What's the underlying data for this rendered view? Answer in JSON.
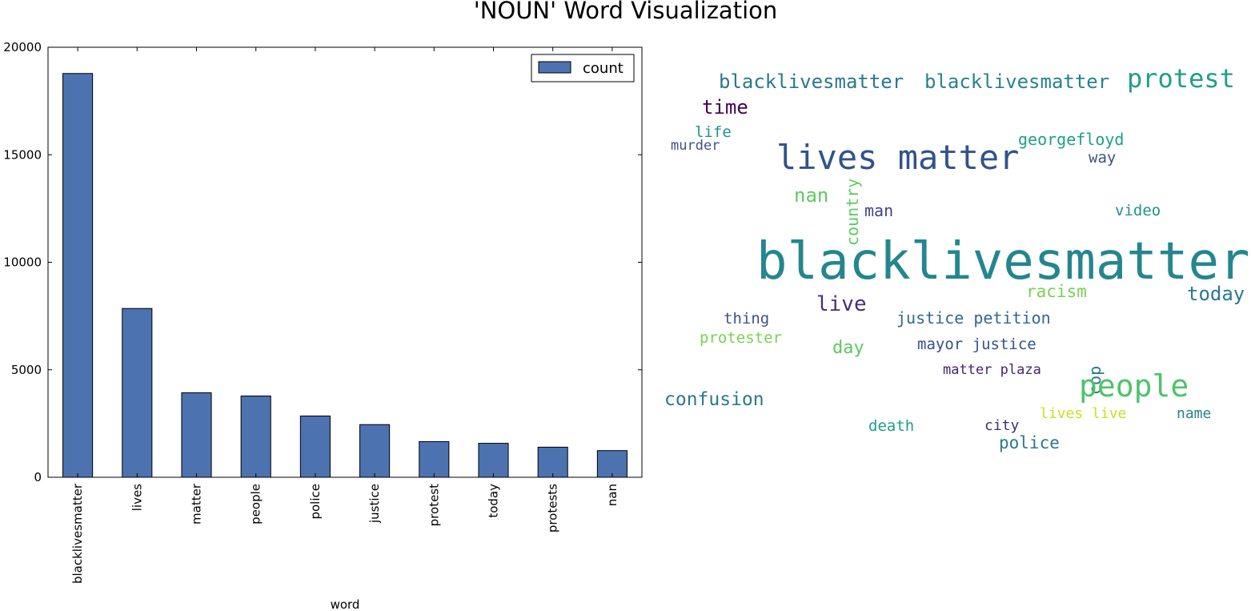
{
  "page_title": "'NOUN' Word Visualization",
  "chart_data": {
    "type": "bar",
    "title": "'NOUN' Word Visualization",
    "xlabel": "word",
    "ylabel": "",
    "categories": [
      "blacklivesmatter",
      "lives",
      "matter",
      "people",
      "police",
      "justice",
      "protest",
      "today",
      "protests",
      "nan"
    ],
    "series": [
      {
        "name": "count",
        "values": [
          18780,
          7850,
          3930,
          3780,
          2850,
          2450,
          1660,
          1580,
          1400,
          1240
        ]
      }
    ],
    "ylim": [
      0,
      20000
    ],
    "yticks": [
      "0",
      "5000",
      "10000",
      "15000",
      "20000"
    ],
    "bar_color": "#4c72b0",
    "legend": {
      "position": "top-right",
      "label": "count"
    },
    "grid": false
  },
  "wordcloud": {
    "words": [
      {
        "text": "blacklivesmatter",
        "color": "#24868e"
      },
      {
        "text": "lives matter",
        "color": "#31528d"
      },
      {
        "text": "blacklivesmatter",
        "color": "#2a788e"
      },
      {
        "text": "blacklivesmatter",
        "color": "#26828e"
      },
      {
        "text": "protest",
        "color": "#1f9e89"
      },
      {
        "text": "time",
        "color": "#440154"
      },
      {
        "text": "life",
        "color": "#21918c"
      },
      {
        "text": "murder",
        "color": "#3b528b"
      },
      {
        "text": "georgefloyd",
        "color": "#1fa088"
      },
      {
        "text": "way",
        "color": "#3b528b"
      },
      {
        "text": "nan",
        "color": "#5ec962"
      },
      {
        "text": "country",
        "color": "#5ec962"
      },
      {
        "text": "man",
        "color": "#414487"
      },
      {
        "text": "video",
        "color": "#21918c"
      },
      {
        "text": "racism",
        "color": "#7ad151"
      },
      {
        "text": "today",
        "color": "#2a788e"
      },
      {
        "text": "live",
        "color": "#472d7b"
      },
      {
        "text": "thing",
        "color": "#3b528b"
      },
      {
        "text": "justice petition",
        "color": "#31688e"
      },
      {
        "text": "protester",
        "color": "#7ad151"
      },
      {
        "text": "day",
        "color": "#5ec962"
      },
      {
        "text": "mayor justice",
        "color": "#31528d"
      },
      {
        "text": "cop",
        "color": "#2a788e"
      },
      {
        "text": "matter plaza",
        "color": "#46246c"
      },
      {
        "text": "people",
        "color": "#4ec36b"
      },
      {
        "text": "confusion",
        "color": "#2a788e"
      },
      {
        "text": "death",
        "color": "#1f9e89"
      },
      {
        "text": "city",
        "color": "#3e2f74"
      },
      {
        "text": "lives live",
        "color": "#c9e020"
      },
      {
        "text": "name",
        "color": "#26828e"
      },
      {
        "text": "police",
        "color": "#2a788e"
      }
    ]
  }
}
